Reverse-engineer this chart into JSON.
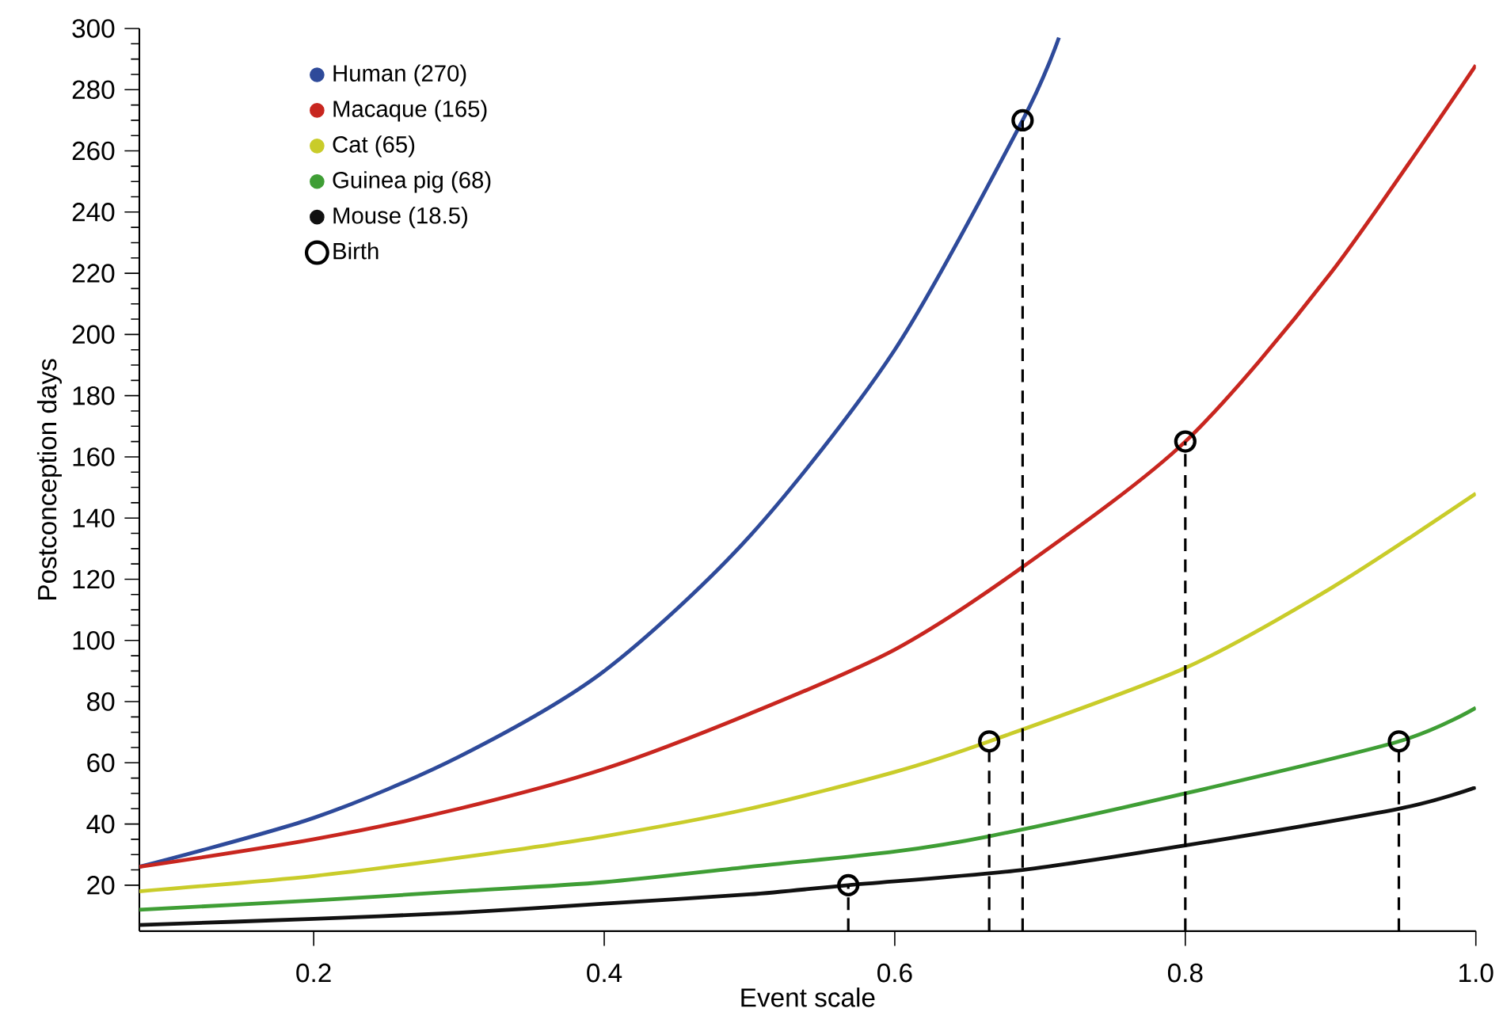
{
  "chart_data": {
    "type": "line",
    "xlabel": "Event scale",
    "ylabel": "Postconception days",
    "xlim": [
      0.08,
      1.0
    ],
    "ylim": [
      5,
      300
    ],
    "xticks": [
      0.2,
      0.4,
      0.6,
      0.8,
      {
        "value": 1.0,
        "label": "1.0"
      }
    ],
    "yticks": [
      20,
      40,
      60,
      80,
      100,
      120,
      140,
      160,
      180,
      200,
      220,
      240,
      260,
      280,
      300
    ],
    "grid": false,
    "legend": "top left",
    "line_style": "solid",
    "marker": "none",
    "series": [
      {
        "name": "Human (270)",
        "color": "#2e4a9a",
        "x": [
          0.08,
          0.2,
          0.3,
          0.4,
          0.5,
          0.6,
          0.688,
          0.713
        ],
        "values": [
          26,
          42,
          62,
          90,
          134,
          195,
          270,
          297
        ]
      },
      {
        "name": "Macaque (165)",
        "color": "#c8261f",
        "x": [
          0.08,
          0.2,
          0.3,
          0.4,
          0.5,
          0.6,
          0.688,
          0.8,
          0.9,
          1.0
        ],
        "values": [
          26,
          35,
          45,
          58,
          76,
          97,
          124,
          165,
          220,
          288
        ]
      },
      {
        "name": "Cat (65)",
        "color": "#c9cc2a",
        "x": [
          0.08,
          0.2,
          0.3,
          0.4,
          0.5,
          0.6,
          0.665,
          0.8,
          0.9,
          1.0
        ],
        "values": [
          18,
          23,
          29,
          36,
          45,
          57,
          67,
          91,
          117,
          148
        ]
      },
      {
        "name": "Guinea pig (68)",
        "color": "#3f9e35",
        "x": [
          0.08,
          0.2,
          0.3,
          0.4,
          0.5,
          0.6,
          0.665,
          0.8,
          0.947,
          1.0
        ],
        "values": [
          12,
          15,
          18,
          21,
          26,
          31,
          36,
          50,
          67,
          78
        ]
      },
      {
        "name": "Mouse (18.5)",
        "color": "#111111",
        "x": [
          0.08,
          0.2,
          0.3,
          0.4,
          0.5,
          0.568,
          0.688,
          0.8,
          0.947,
          1.0
        ],
        "values": [
          7,
          9,
          11,
          14,
          17,
          20,
          25,
          33,
          45,
          52
        ]
      },
      {
        "name": "Birth",
        "type": "lollipop",
        "color": "#000000",
        "marker": "circle",
        "line_style": "dashed",
        "x": [
          0.688,
          0.8,
          0.665,
          0.947,
          0.568
        ],
        "values": [
          270,
          165,
          67,
          67,
          20
        ]
      }
    ]
  }
}
